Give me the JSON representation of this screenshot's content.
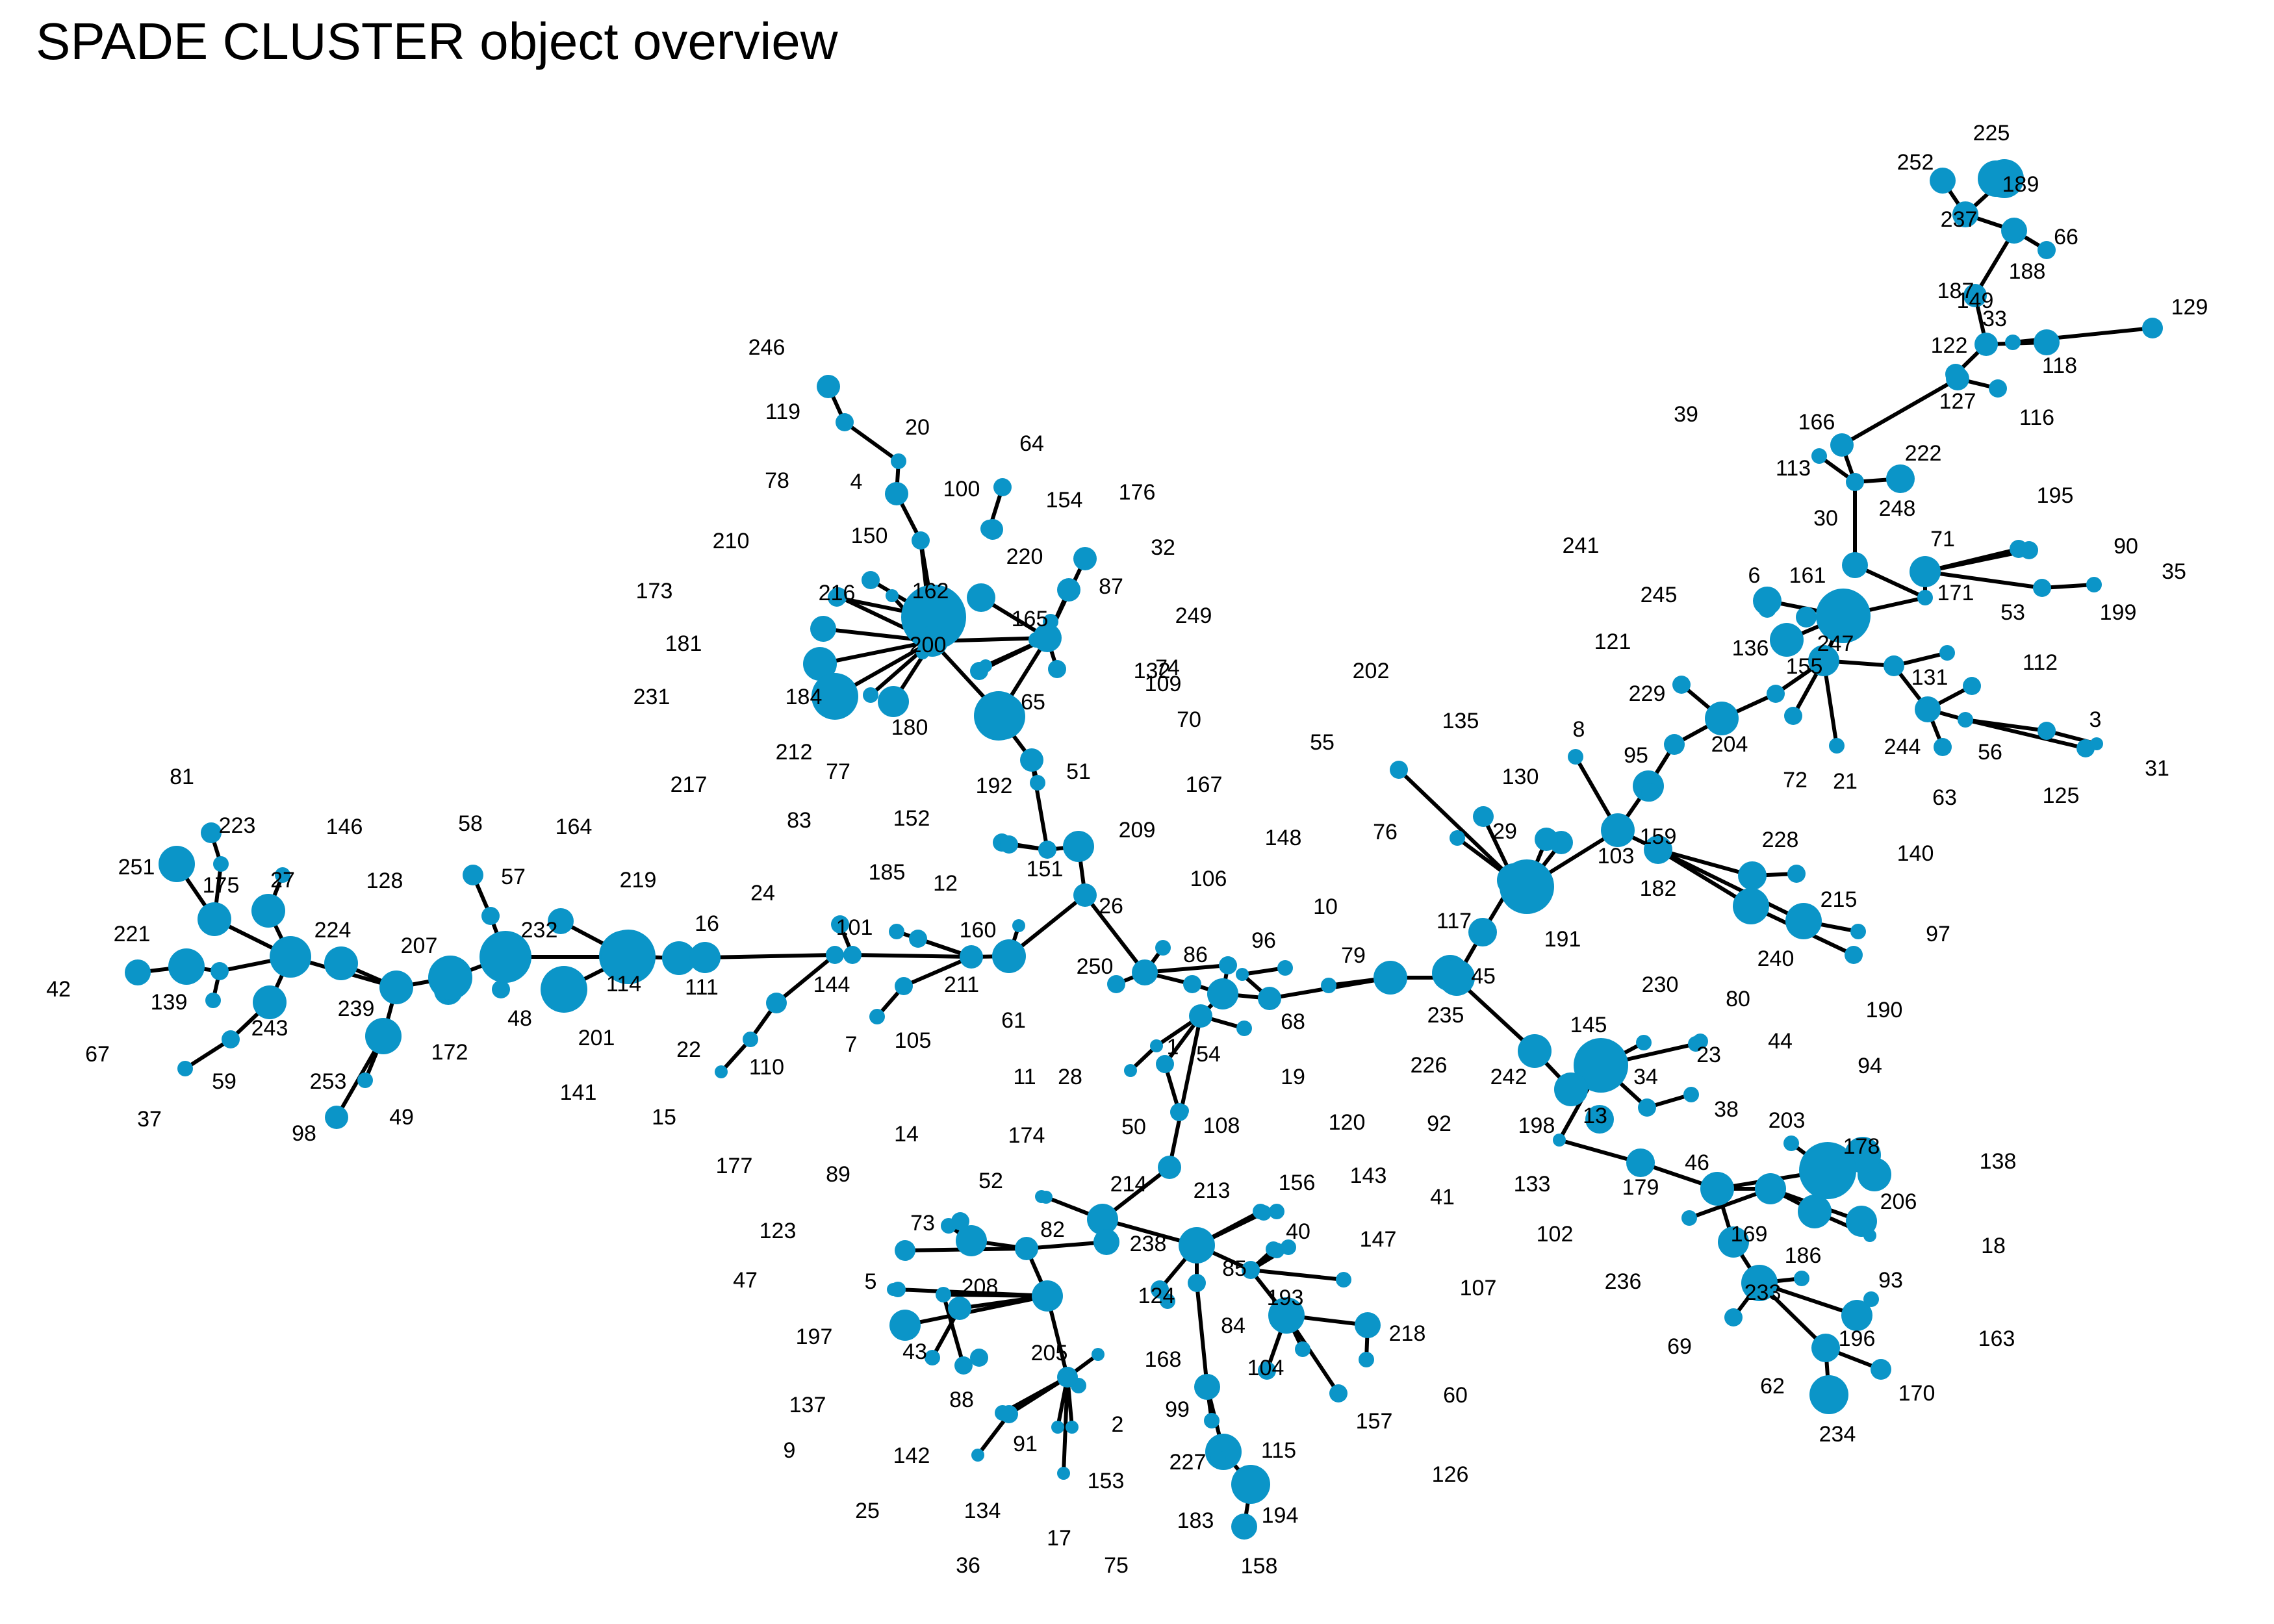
{
  "title": "SPADE CLUSTER object overview",
  "colors": {
    "node": "#0b95c8",
    "edge": "#000000"
  },
  "nodes": [
    {
      "id": "1"
    },
    {
      "id": "2"
    },
    {
      "id": "3"
    },
    {
      "id": "4"
    },
    {
      "id": "5"
    },
    {
      "id": "6"
    },
    {
      "id": "7"
    },
    {
      "id": "8"
    },
    {
      "id": "9"
    },
    {
      "id": "10"
    },
    {
      "id": "11"
    },
    {
      "id": "12"
    },
    {
      "id": "13"
    },
    {
      "id": "14"
    },
    {
      "id": "15"
    },
    {
      "id": "16"
    },
    {
      "id": "17"
    },
    {
      "id": "18"
    },
    {
      "id": "19"
    },
    {
      "id": "20"
    },
    {
      "id": "21"
    },
    {
      "id": "22"
    },
    {
      "id": "23"
    },
    {
      "id": "24"
    },
    {
      "id": "25"
    },
    {
      "id": "26"
    },
    {
      "id": "27"
    },
    {
      "id": "28"
    },
    {
      "id": "29"
    },
    {
      "id": "30"
    },
    {
      "id": "31"
    },
    {
      "id": "32"
    },
    {
      "id": "33"
    },
    {
      "id": "34"
    },
    {
      "id": "35"
    },
    {
      "id": "36"
    },
    {
      "id": "37"
    },
    {
      "id": "38"
    },
    {
      "id": "39"
    },
    {
      "id": "40"
    },
    {
      "id": "41"
    },
    {
      "id": "42"
    },
    {
      "id": "43"
    },
    {
      "id": "44"
    },
    {
      "id": "45"
    },
    {
      "id": "46"
    },
    {
      "id": "47"
    },
    {
      "id": "48"
    },
    {
      "id": "49"
    },
    {
      "id": "50"
    },
    {
      "id": "51"
    },
    {
      "id": "52"
    },
    {
      "id": "53"
    },
    {
      "id": "54"
    },
    {
      "id": "55"
    },
    {
      "id": "56"
    },
    {
      "id": "57"
    },
    {
      "id": "58"
    },
    {
      "id": "59"
    },
    {
      "id": "60"
    },
    {
      "id": "61"
    },
    {
      "id": "62"
    },
    {
      "id": "63"
    },
    {
      "id": "64"
    },
    {
      "id": "65"
    },
    {
      "id": "66"
    },
    {
      "id": "67"
    },
    {
      "id": "68"
    },
    {
      "id": "69"
    },
    {
      "id": "70"
    },
    {
      "id": "71"
    },
    {
      "id": "72"
    },
    {
      "id": "73"
    },
    {
      "id": "74"
    },
    {
      "id": "75"
    },
    {
      "id": "76"
    },
    {
      "id": "77"
    },
    {
      "id": "78"
    },
    {
      "id": "79"
    },
    {
      "id": "80"
    },
    {
      "id": "81"
    },
    {
      "id": "82"
    },
    {
      "id": "83"
    },
    {
      "id": "84"
    },
    {
      "id": "85"
    },
    {
      "id": "86"
    },
    {
      "id": "87"
    },
    {
      "id": "88"
    },
    {
      "id": "89"
    },
    {
      "id": "90"
    },
    {
      "id": "91"
    },
    {
      "id": "92"
    },
    {
      "id": "93"
    },
    {
      "id": "94"
    },
    {
      "id": "95"
    },
    {
      "id": "96"
    },
    {
      "id": "97"
    },
    {
      "id": "98"
    },
    {
      "id": "99"
    },
    {
      "id": "100"
    },
    {
      "id": "101"
    },
    {
      "id": "102"
    },
    {
      "id": "103"
    },
    {
      "id": "104"
    },
    {
      "id": "105"
    },
    {
      "id": "106"
    },
    {
      "id": "107"
    },
    {
      "id": "108"
    },
    {
      "id": "109"
    },
    {
      "id": "110"
    },
    {
      "id": "111"
    },
    {
      "id": "112"
    },
    {
      "id": "113"
    },
    {
      "id": "114"
    },
    {
      "id": "115"
    },
    {
      "id": "116"
    },
    {
      "id": "117"
    },
    {
      "id": "118"
    },
    {
      "id": "119"
    },
    {
      "id": "120"
    },
    {
      "id": "121"
    },
    {
      "id": "122"
    },
    {
      "id": "123"
    },
    {
      "id": "124"
    },
    {
      "id": "125"
    },
    {
      "id": "126"
    },
    {
      "id": "127"
    },
    {
      "id": "128"
    },
    {
      "id": "129"
    },
    {
      "id": "130"
    },
    {
      "id": "131"
    },
    {
      "id": "132"
    },
    {
      "id": "133"
    },
    {
      "id": "134"
    },
    {
      "id": "135"
    },
    {
      "id": "136"
    },
    {
      "id": "137"
    },
    {
      "id": "138"
    },
    {
      "id": "139"
    },
    {
      "id": "140"
    },
    {
      "id": "141"
    },
    {
      "id": "142"
    },
    {
      "id": "143"
    },
    {
      "id": "144"
    },
    {
      "id": "145"
    },
    {
      "id": "146"
    },
    {
      "id": "147"
    },
    {
      "id": "148"
    },
    {
      "id": "149"
    },
    {
      "id": "150"
    },
    {
      "id": "151"
    },
    {
      "id": "152"
    },
    {
      "id": "153"
    },
    {
      "id": "154"
    },
    {
      "id": "155"
    },
    {
      "id": "156"
    },
    {
      "id": "157"
    },
    {
      "id": "158"
    },
    {
      "id": "159"
    },
    {
      "id": "160"
    },
    {
      "id": "161"
    },
    {
      "id": "162"
    },
    {
      "id": "163"
    },
    {
      "id": "164"
    },
    {
      "id": "165"
    },
    {
      "id": "166"
    },
    {
      "id": "167"
    },
    {
      "id": "168"
    },
    {
      "id": "169"
    },
    {
      "id": "170"
    },
    {
      "id": "171"
    },
    {
      "id": "172"
    },
    {
      "id": "173"
    },
    {
      "id": "174"
    },
    {
      "id": "175"
    },
    {
      "id": "176"
    },
    {
      "id": "177"
    },
    {
      "id": "178"
    },
    {
      "id": "179"
    },
    {
      "id": "180"
    },
    {
      "id": "181"
    },
    {
      "id": "182"
    },
    {
      "id": "183"
    },
    {
      "id": "184"
    },
    {
      "id": "185"
    },
    {
      "id": "186"
    },
    {
      "id": "187"
    },
    {
      "id": "188"
    },
    {
      "id": "189"
    },
    {
      "id": "190"
    },
    {
      "id": "191"
    },
    {
      "id": "192"
    },
    {
      "id": "193"
    },
    {
      "id": "194"
    },
    {
      "id": "195"
    },
    {
      "id": "196"
    },
    {
      "id": "197"
    },
    {
      "id": "198"
    },
    {
      "id": "199"
    },
    {
      "id": "200"
    },
    {
      "id": "201"
    },
    {
      "id": "202"
    },
    {
      "id": "203"
    },
    {
      "id": "204"
    },
    {
      "id": "205"
    },
    {
      "id": "206"
    },
    {
      "id": "207"
    },
    {
      "id": "208"
    },
    {
      "id": "209"
    },
    {
      "id": "210"
    },
    {
      "id": "211"
    },
    {
      "id": "212"
    },
    {
      "id": "213"
    },
    {
      "id": "214"
    },
    {
      "id": "215"
    },
    {
      "id": "216"
    },
    {
      "id": "217"
    },
    {
      "id": "218"
    },
    {
      "id": "219"
    },
    {
      "id": "220"
    },
    {
      "id": "221"
    },
    {
      "id": "222"
    },
    {
      "id": "223"
    },
    {
      "id": "224"
    },
    {
      "id": "225"
    },
    {
      "id": "226"
    },
    {
      "id": "227"
    },
    {
      "id": "228"
    },
    {
      "id": "229"
    },
    {
      "id": "230"
    },
    {
      "id": "231"
    },
    {
      "id": "232"
    },
    {
      "id": "233"
    },
    {
      "id": "234"
    },
    {
      "id": "235"
    },
    {
      "id": "236"
    },
    {
      "id": "237"
    },
    {
      "id": "238"
    },
    {
      "id": "239"
    },
    {
      "id": "240"
    },
    {
      "id": "241"
    },
    {
      "id": "242"
    },
    {
      "id": "243"
    },
    {
      "id": "244"
    },
    {
      "id": "245"
    },
    {
      "id": "246"
    },
    {
      "id": "247"
    },
    {
      "id": "248"
    },
    {
      "id": "249"
    },
    {
      "id": "250"
    },
    {
      "id": "251"
    },
    {
      "id": "252"
    },
    {
      "id": "253"
    }
  ]
}
